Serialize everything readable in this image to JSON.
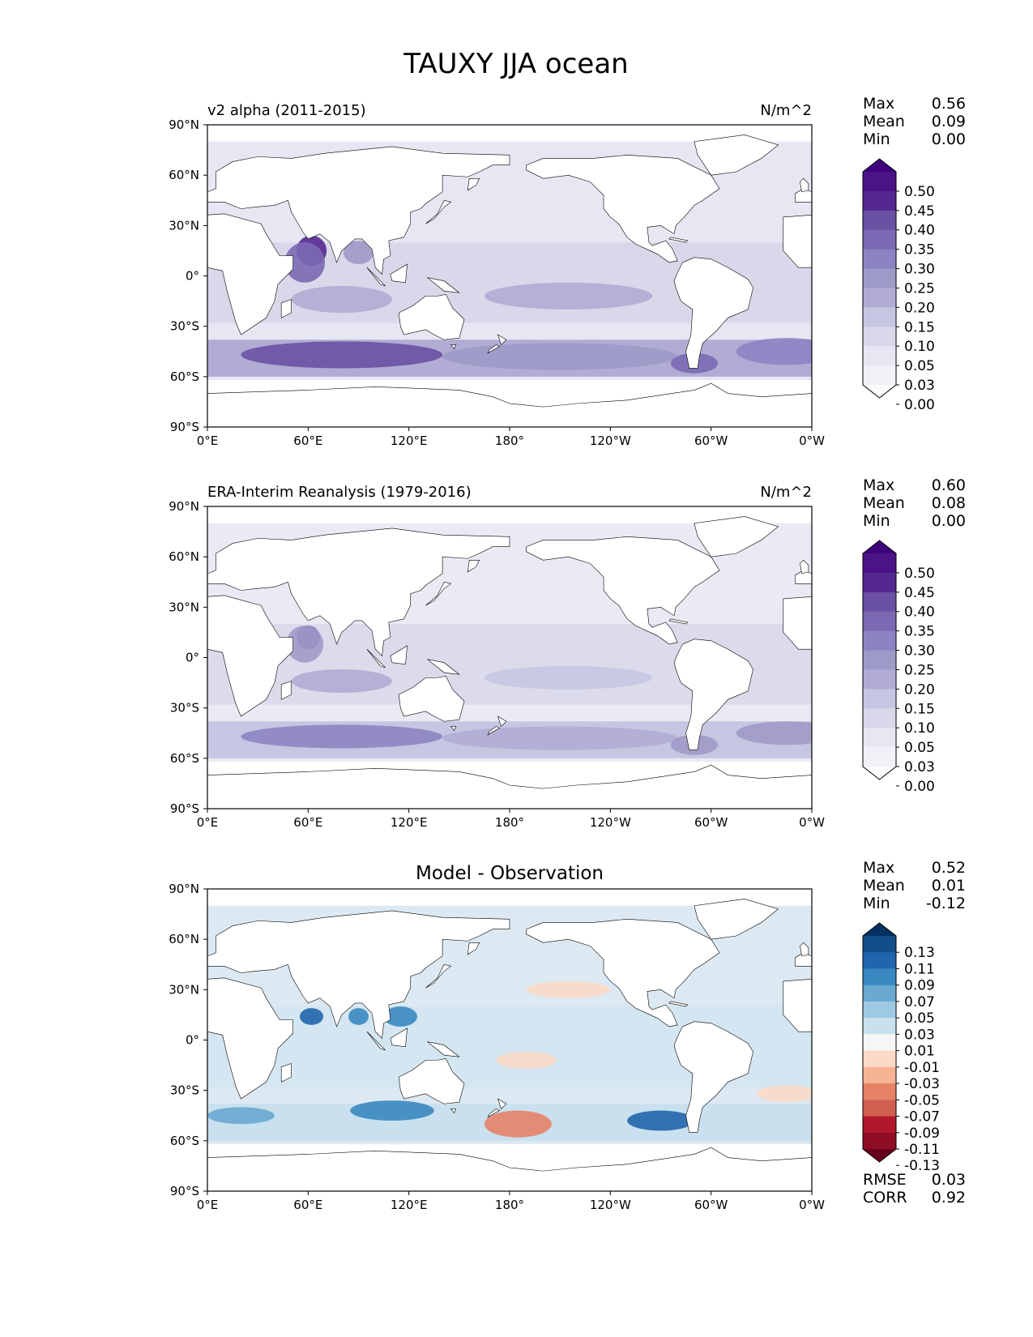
{
  "figure": {
    "title": "TAUXY JJA ocean"
  },
  "axes": {
    "lat_ticks": [
      "90°N",
      "60°N",
      "30°N",
      "0°",
      "30°S",
      "60°S",
      "90°S"
    ],
    "lon_ticks": [
      "0°E",
      "60°E",
      "120°E",
      "180°",
      "120°W",
      "60°W",
      "0°W"
    ]
  },
  "panels": [
    {
      "id": "model",
      "left_title": "v2 alpha (2011-2015)",
      "center_title": "",
      "units": "N/m^2",
      "stats": [
        {
          "label": "Max",
          "value": "0.56"
        },
        {
          "label": "Mean",
          "value": "0.09"
        },
        {
          "label": "Min",
          "value": "0.00"
        }
      ],
      "colorbar": {
        "labels": [
          "0.50",
          "0.45",
          "0.40",
          "0.35",
          "0.30",
          "0.25",
          "0.20",
          "0.15",
          "0.10",
          "0.05",
          "0.03",
          "0.00"
        ],
        "colors": [
          "#3f007d",
          "#4a1486",
          "#54278f",
          "#6a51a3",
          "#7b6ab3",
          "#8c84c2",
          "#9e9ac8",
          "#b0acd4",
          "#c5c6e1",
          "#d9d8ea",
          "#e7e6f2",
          "#f2f1f7",
          "#fcfbfd"
        ]
      },
      "features": [
        {
          "name": "arabian-sea-max",
          "lon": 62,
          "lat": 15,
          "rx": 9,
          "ry": 9,
          "color": "#54278f"
        },
        {
          "name": "somali-jet",
          "lon": 58,
          "lat": 8,
          "rx": 12,
          "ry": 12,
          "color": "#7b6ab3"
        },
        {
          "name": "bay-of-bengal",
          "lon": 90,
          "lat": 14,
          "rx": 9,
          "ry": 7,
          "color": "#9e9ac8"
        },
        {
          "name": "south-indian-trades",
          "lon": 80,
          "lat": -14,
          "rx": 30,
          "ry": 8,
          "color": "#b0acd4"
        },
        {
          "name": "southern-ocean-indian",
          "lon": 80,
          "lat": -47,
          "rx": 60,
          "ry": 8,
          "color": "#6a51a3"
        },
        {
          "name": "southern-ocean-pacific",
          "lon": 210,
          "lat": -48,
          "rx": 70,
          "ry": 8,
          "color": "#9e9ac8"
        },
        {
          "name": "drake-passage",
          "lon": 290,
          "lat": -52,
          "rx": 14,
          "ry": 6,
          "color": "#7b6ab3"
        },
        {
          "name": "pacific-trades",
          "lon": 215,
          "lat": -12,
          "rx": 50,
          "ry": 8,
          "color": "#b0acd4"
        },
        {
          "name": "south-atlantic",
          "lon": 345,
          "lat": -45,
          "rx": 30,
          "ry": 8,
          "color": "#8c84c2"
        }
      ]
    },
    {
      "id": "obs",
      "left_title": "ERA-Interim Reanalysis (1979-2016)",
      "center_title": "",
      "units": "N/m^2",
      "stats": [
        {
          "label": "Max",
          "value": "0.60"
        },
        {
          "label": "Mean",
          "value": "0.08"
        },
        {
          "label": "Min",
          "value": "0.00"
        }
      ],
      "colorbar": {
        "labels": [
          "0.50",
          "0.45",
          "0.40",
          "0.35",
          "0.30",
          "0.25",
          "0.20",
          "0.15",
          "0.10",
          "0.05",
          "0.03",
          "0.00"
        ],
        "colors": [
          "#3f007d",
          "#4a1486",
          "#54278f",
          "#6a51a3",
          "#7b6ab3",
          "#8c84c2",
          "#9e9ac8",
          "#b0acd4",
          "#c5c6e1",
          "#d9d8ea",
          "#e7e6f2",
          "#f2f1f7",
          "#fcfbfd"
        ]
      },
      "features": [
        {
          "name": "arabian-sea-max",
          "lon": 60,
          "lat": 12,
          "rx": 7,
          "ry": 7,
          "color": "#6a51a3"
        },
        {
          "name": "somali-jet",
          "lon": 58,
          "lat": 8,
          "rx": 11,
          "ry": 11,
          "color": "#9e9ac8"
        },
        {
          "name": "south-indian-trades",
          "lon": 80,
          "lat": -14,
          "rx": 30,
          "ry": 7,
          "color": "#b0acd4"
        },
        {
          "name": "southern-ocean-indian",
          "lon": 80,
          "lat": -47,
          "rx": 60,
          "ry": 7,
          "color": "#8c84c2"
        },
        {
          "name": "southern-ocean-pacific",
          "lon": 210,
          "lat": -48,
          "rx": 70,
          "ry": 7,
          "color": "#b0acd4"
        },
        {
          "name": "drake-passage",
          "lon": 290,
          "lat": -52,
          "rx": 14,
          "ry": 6,
          "color": "#9e9ac8"
        },
        {
          "name": "pacific-trades",
          "lon": 215,
          "lat": -12,
          "rx": 50,
          "ry": 7,
          "color": "#c5c6e1"
        },
        {
          "name": "south-atlantic",
          "lon": 345,
          "lat": -45,
          "rx": 30,
          "ry": 7,
          "color": "#9e9ac8"
        }
      ]
    },
    {
      "id": "diff",
      "left_title": "",
      "center_title": "Model - Observation",
      "units": "",
      "stats": [
        {
          "label": "Max",
          "value": "0.52"
        },
        {
          "label": "Mean",
          "value": "0.01"
        },
        {
          "label": "Min",
          "value": "-0.12"
        }
      ],
      "colorbar": {
        "labels": [
          "0.13",
          "0.11",
          "0.09",
          "0.07",
          "0.05",
          "0.03",
          "0.01",
          "-0.01",
          "-0.03",
          "-0.05",
          "-0.07",
          "-0.09",
          "-0.11",
          "-0.13"
        ],
        "colors": [
          "#053061",
          "#124e8a",
          "#2166ac",
          "#3a88c0",
          "#6aa9d0",
          "#9ec9e2",
          "#c9e1ee",
          "#f6f6f6",
          "#fbdac6",
          "#f6b394",
          "#e58267",
          "#d15f4f",
          "#b2182b",
          "#8d0e24",
          "#67001f"
        ]
      },
      "features": [
        {
          "name": "arabian-sea-pos",
          "lon": 62,
          "lat": 14,
          "rx": 7,
          "ry": 5,
          "color": "#2166ac"
        },
        {
          "name": "bay-of-bengal-pos",
          "lon": 90,
          "lat": 14,
          "rx": 6,
          "ry": 5,
          "color": "#3a88c0"
        },
        {
          "name": "south-china-sea-pos",
          "lon": 115,
          "lat": 14,
          "rx": 10,
          "ry": 6,
          "color": "#3a88c0"
        },
        {
          "name": "south-indian-pos",
          "lon": 110,
          "lat": -42,
          "rx": 25,
          "ry": 6,
          "color": "#3a88c0"
        },
        {
          "name": "south-atlantic-pos",
          "lon": 20,
          "lat": -45,
          "rx": 20,
          "ry": 5,
          "color": "#6aa9d0"
        },
        {
          "name": "southeast-pacific-pos",
          "lon": 270,
          "lat": -48,
          "rx": 20,
          "ry": 6,
          "color": "#2166ac"
        },
        {
          "name": "south-pacific-neg",
          "lon": 185,
          "lat": -50,
          "rx": 20,
          "ry": 8,
          "color": "#e58267"
        },
        {
          "name": "tropical-pacific-neg",
          "lon": 190,
          "lat": -12,
          "rx": 18,
          "ry": 5,
          "color": "#fbdac6"
        },
        {
          "name": "north-pacific-neg",
          "lon": 215,
          "lat": 30,
          "rx": 25,
          "ry": 5,
          "color": "#fbdac6"
        },
        {
          "name": "south-atlantic-neg",
          "lon": 345,
          "lat": -32,
          "rx": 18,
          "ry": 5,
          "color": "#fbdac6"
        }
      ],
      "metrics": [
        {
          "label": "RMSE",
          "value": "0.03"
        },
        {
          "label": "CORR",
          "value": "0.92"
        }
      ]
    }
  ]
}
